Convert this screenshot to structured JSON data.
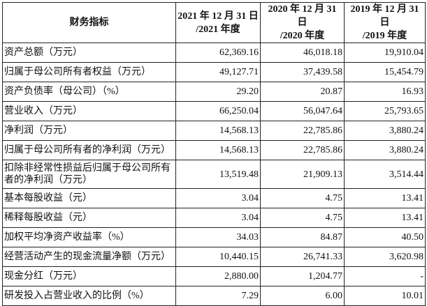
{
  "header": {
    "indicator": "财务指标",
    "columns": [
      {
        "line1": "2021 年 12 月 31 日",
        "line2": "/2021 年度"
      },
      {
        "line1": "2020 年 12 月 31 日",
        "line2": "/2020 年度"
      },
      {
        "line1": "2019 年 12 月 31 日",
        "line2": "/2019 年度"
      }
    ]
  },
  "rows": [
    {
      "label": "资产总额（万元）",
      "values": [
        "62,369.16",
        "46,018.18",
        "19,910.04"
      ]
    },
    {
      "label": "归属于母公司所有者权益（万元）",
      "values": [
        "49,127.71",
        "37,439.58",
        "15,454.79"
      ]
    },
    {
      "label": "资产负债率（母公司）（%）",
      "values": [
        "29.20",
        "20.87",
        "16.93"
      ]
    },
    {
      "label": "营业收入（万元）",
      "values": [
        "66,250.04",
        "56,047.64",
        "25,793.65"
      ]
    },
    {
      "label": "净利润（万元）",
      "values": [
        "14,568.13",
        "22,785.86",
        "3,880.24"
      ]
    },
    {
      "label": "归属于母公司所有者的净利润（万元）",
      "values": [
        "14,568.13",
        "22,785.86",
        "3,880.24"
      ]
    },
    {
      "label": "扣除非经常性损益后归属于母公司所有者的净利润（万元）",
      "values": [
        "13,519.48",
        "21,909.13",
        "3,514.44"
      ]
    },
    {
      "label": "基本每股收益（元）",
      "values": [
        "3.04",
        "4.75",
        "13.41"
      ]
    },
    {
      "label": "稀释每股收益（元）",
      "values": [
        "3.04",
        "4.75",
        "13.41"
      ]
    },
    {
      "label": "加权平均净资产收益率（%）",
      "values": [
        "34.03",
        "84.87",
        "40.50"
      ]
    },
    {
      "label": "经营活动产生的现金流量净额（万元）",
      "values": [
        "10,440.15",
        "26,741.33",
        "3,620.98"
      ]
    },
    {
      "label": "现金分红（万元）",
      "values": [
        "2,880.00",
        "1,204.77",
        "-"
      ]
    },
    {
      "label": "研发投入占营业收入的比例（%）",
      "values": [
        "7.29",
        "6.00",
        "10.01"
      ]
    }
  ]
}
